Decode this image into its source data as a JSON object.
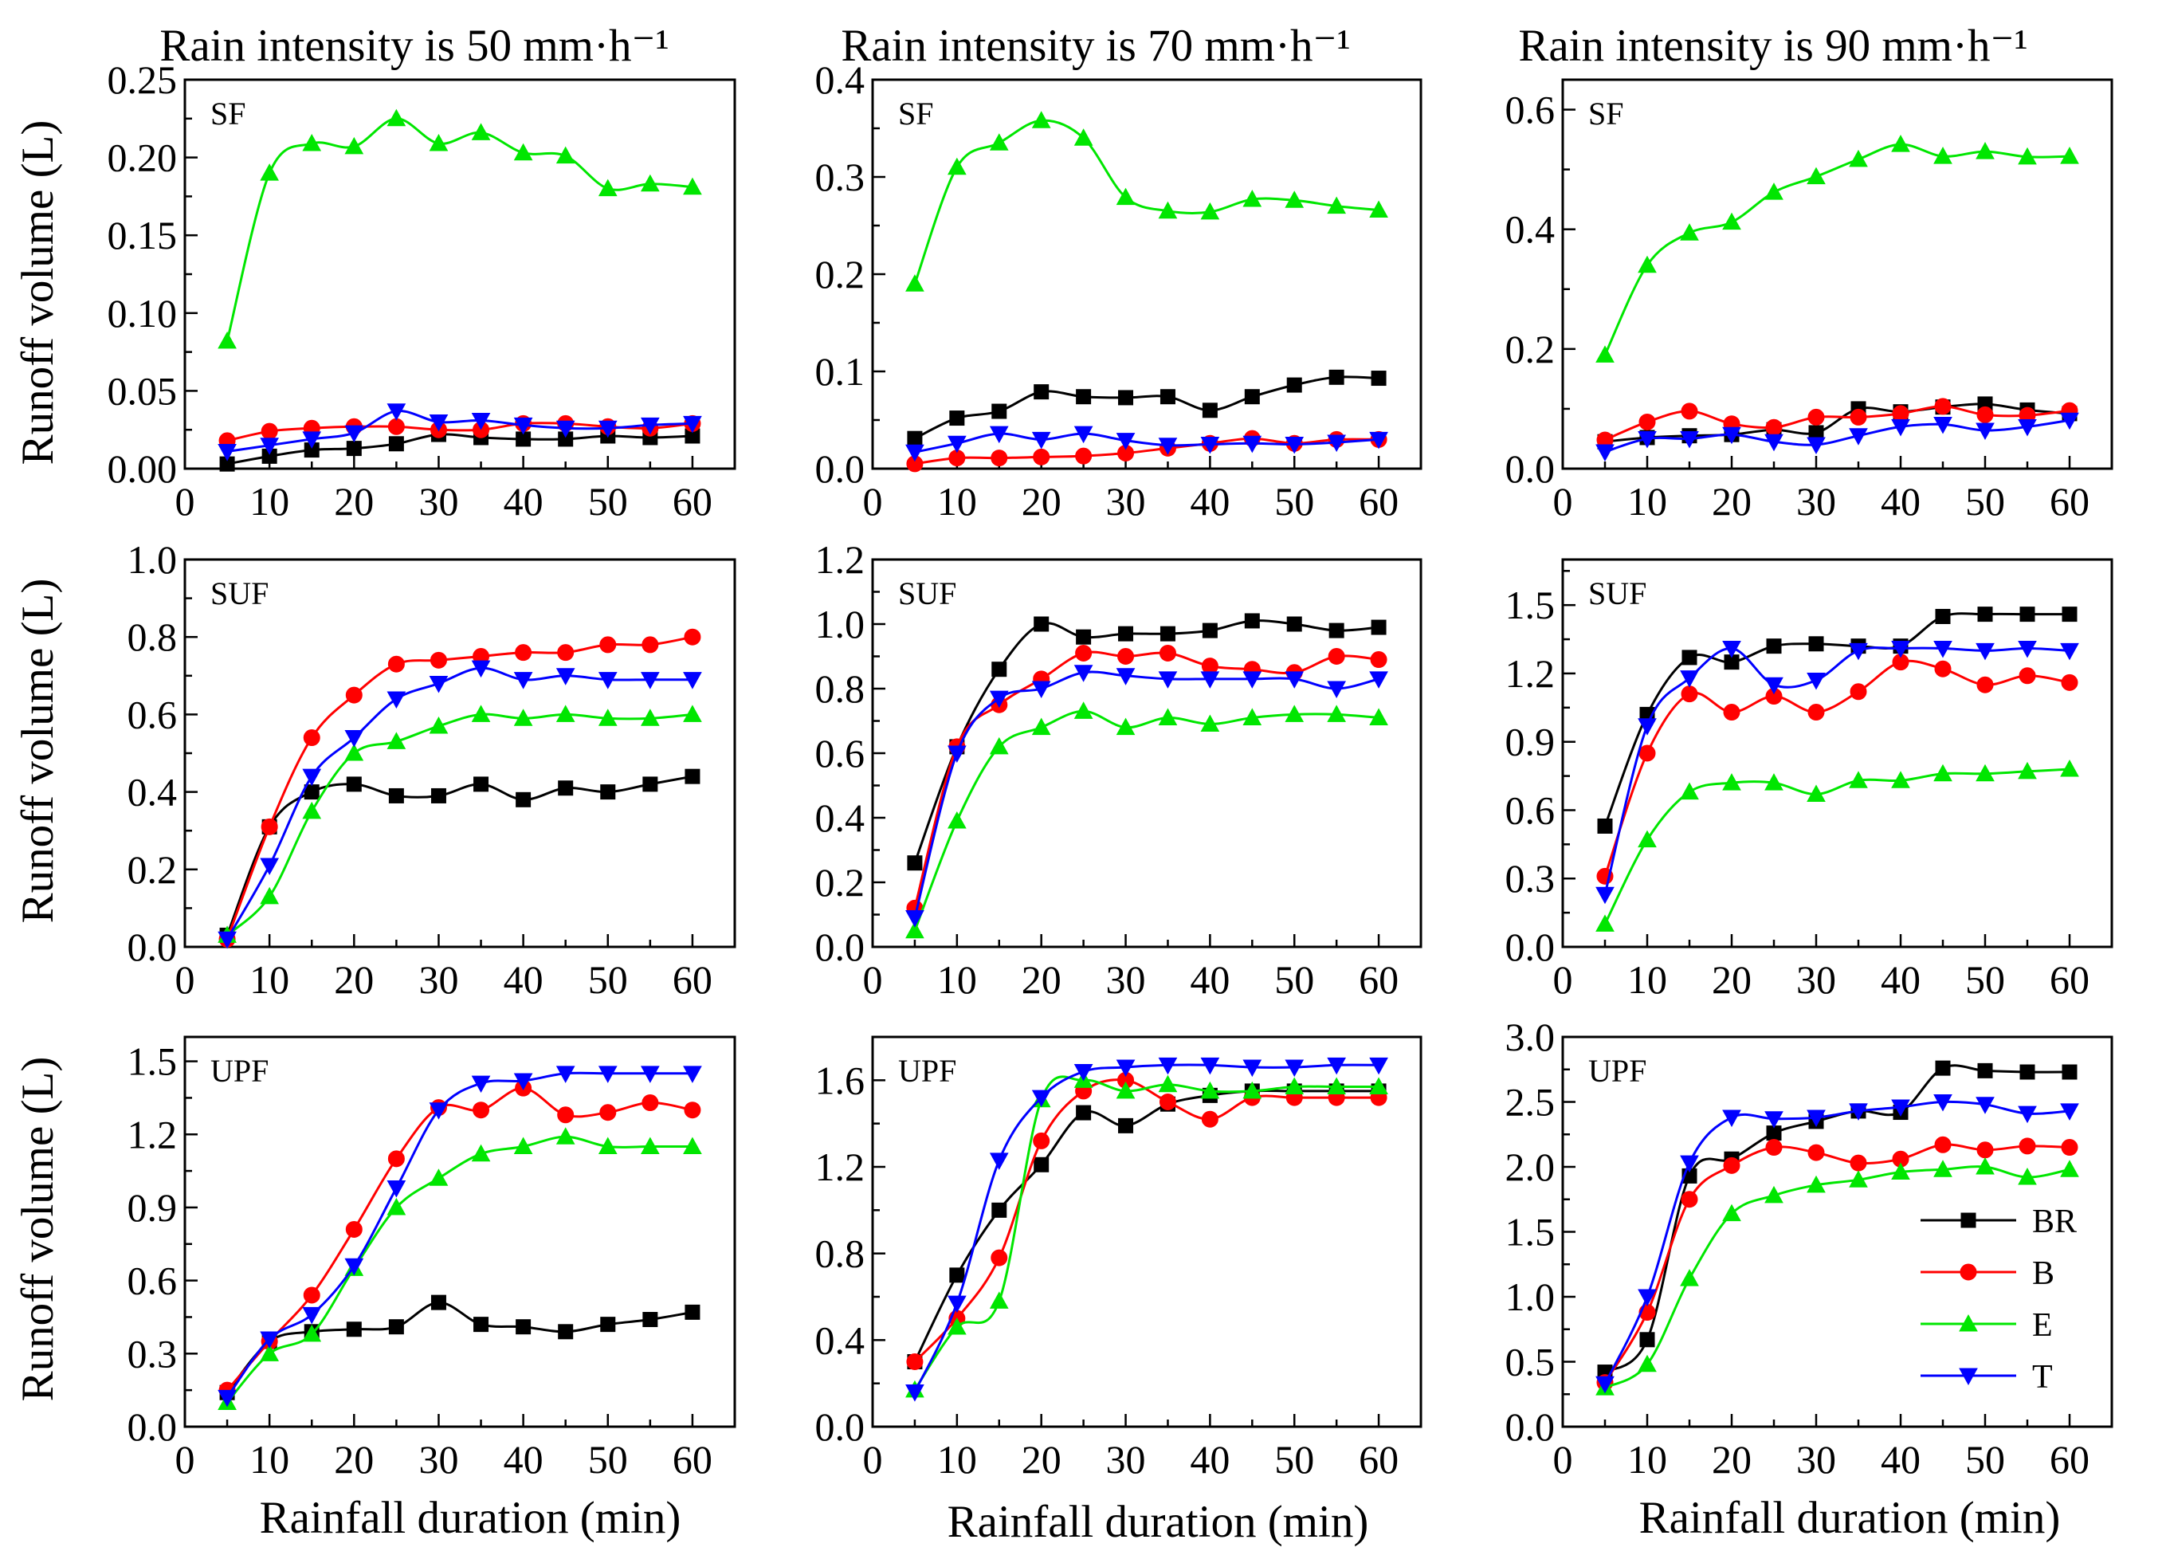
{
  "figure": {
    "column_titles": [
      "Rain intensity is 50 mm·h⁻¹",
      "Rain intensity is 70 mm·h⁻¹",
      "Rain intensity is 90 mm·h⁻¹"
    ],
    "row_labels": [
      "SF",
      "SUF",
      "UPF"
    ],
    "x_axis_label": "Rainfall duration (min)",
    "y_axis_label": "Runoff volume (L)"
  },
  "colors": {
    "BR": "#000000",
    "B": "#ff0000",
    "E": "#00e600",
    "T": "#0000ff"
  },
  "legend": [
    {
      "name": "BR",
      "marker": "square"
    },
    {
      "name": "B",
      "marker": "circle"
    },
    {
      "name": "E",
      "marker": "triangle-up"
    },
    {
      "name": "T",
      "marker": "triangle-down"
    }
  ],
  "chart_data": [
    {
      "type": "line",
      "row": "SF",
      "intensity": "Rain intensity is 50 mm·h⁻¹",
      "x": [
        5,
        10,
        15,
        20,
        25,
        30,
        35,
        40,
        45,
        50,
        55,
        60
      ],
      "xlim": [
        0,
        65
      ],
      "xticks": [
        0,
        10,
        20,
        30,
        40,
        50,
        60
      ],
      "ylim": [
        0,
        0.25
      ],
      "yticks": [
        "0.00",
        "0.05",
        "0.10",
        "0.15",
        "0.20",
        "0.25"
      ],
      "series": [
        {
          "name": "BR",
          "values": [
            0.003,
            0.008,
            0.012,
            0.013,
            0.016,
            0.022,
            0.02,
            0.019,
            0.019,
            0.021,
            0.02,
            0.021
          ]
        },
        {
          "name": "B",
          "values": [
            0.018,
            0.024,
            0.026,
            0.027,
            0.027,
            0.025,
            0.025,
            0.029,
            0.029,
            0.027,
            0.026,
            0.029
          ]
        },
        {
          "name": "E",
          "values": [
            0.082,
            0.19,
            0.209,
            0.207,
            0.225,
            0.209,
            0.216,
            0.203,
            0.201,
            0.18,
            0.183,
            0.181
          ]
        },
        {
          "name": "T",
          "values": [
            0.011,
            0.015,
            0.019,
            0.023,
            0.037,
            0.03,
            0.031,
            0.028,
            0.026,
            0.026,
            0.028,
            0.029
          ]
        }
      ]
    },
    {
      "type": "line",
      "row": "SF",
      "intensity": "Rain intensity is 70 mm·h⁻¹",
      "x": [
        5,
        10,
        15,
        20,
        25,
        30,
        35,
        40,
        45,
        50,
        55,
        60
      ],
      "xlim": [
        0,
        65
      ],
      "xticks": [
        0,
        10,
        20,
        30,
        40,
        50,
        60
      ],
      "ylim": [
        0,
        0.4
      ],
      "yticks": [
        "0.0",
        "0.1",
        "0.2",
        "0.3",
        "0.4"
      ],
      "series": [
        {
          "name": "BR",
          "values": [
            0.031,
            0.052,
            0.059,
            0.079,
            0.074,
            0.073,
            0.074,
            0.06,
            0.074,
            0.086,
            0.094,
            0.093
          ]
        },
        {
          "name": "B",
          "values": [
            0.005,
            0.011,
            0.011,
            0.012,
            0.013,
            0.016,
            0.021,
            0.026,
            0.031,
            0.026,
            0.03,
            0.03
          ]
        },
        {
          "name": "E",
          "values": [
            0.19,
            0.31,
            0.335,
            0.358,
            0.34,
            0.279,
            0.265,
            0.264,
            0.277,
            0.276,
            0.27,
            0.266
          ]
        },
        {
          "name": "T",
          "values": [
            0.017,
            0.026,
            0.036,
            0.03,
            0.036,
            0.029,
            0.024,
            0.025,
            0.026,
            0.025,
            0.027,
            0.03
          ]
        }
      ]
    },
    {
      "type": "line",
      "row": "SF",
      "intensity": "Rain intensity is 90 mm·h⁻¹",
      "x": [
        5,
        10,
        15,
        20,
        25,
        30,
        35,
        40,
        45,
        50,
        55,
        60
      ],
      "xlim": [
        0,
        65
      ],
      "xticks": [
        0,
        10,
        20,
        30,
        40,
        50,
        60
      ],
      "ylim": [
        0,
        0.65
      ],
      "yticks": [
        "0.0",
        "0.2",
        "0.4",
        "0.6"
      ],
      "series": [
        {
          "name": "BR",
          "values": [
            0.045,
            0.052,
            0.055,
            0.057,
            0.065,
            0.06,
            0.1,
            0.095,
            0.103,
            0.108,
            0.098,
            0.092
          ]
        },
        {
          "name": "B",
          "values": [
            0.048,
            0.078,
            0.096,
            0.075,
            0.069,
            0.086,
            0.086,
            0.092,
            0.104,
            0.09,
            0.089,
            0.097
          ]
        },
        {
          "name": "E",
          "values": [
            0.19,
            0.34,
            0.394,
            0.412,
            0.462,
            0.488,
            0.517,
            0.542,
            0.522,
            0.53,
            0.521,
            0.522
          ]
        },
        {
          "name": "T",
          "values": [
            0.028,
            0.05,
            0.05,
            0.057,
            0.045,
            0.04,
            0.055,
            0.07,
            0.074,
            0.064,
            0.07,
            0.081
          ]
        }
      ]
    },
    {
      "type": "line",
      "row": "SUF",
      "intensity": "Rain intensity is 50 mm·h⁻¹",
      "x": [
        5,
        10,
        15,
        20,
        25,
        30,
        35,
        40,
        45,
        50,
        55,
        60
      ],
      "xlim": [
        0,
        65
      ],
      "xticks": [
        0,
        10,
        20,
        30,
        40,
        50,
        60
      ],
      "ylim": [
        0,
        1.0
      ],
      "yticks": [
        "0.0",
        "0.2",
        "0.4",
        "0.6",
        "0.8",
        "1.0"
      ],
      "series": [
        {
          "name": "BR",
          "values": [
            0.03,
            0.31,
            0.4,
            0.42,
            0.39,
            0.39,
            0.42,
            0.38,
            0.41,
            0.4,
            0.42,
            0.44
          ]
        },
        {
          "name": "B",
          "values": [
            0.02,
            0.31,
            0.54,
            0.65,
            0.73,
            0.74,
            0.75,
            0.76,
            0.76,
            0.78,
            0.78,
            0.8
          ]
        },
        {
          "name": "E",
          "values": [
            0.03,
            0.13,
            0.35,
            0.5,
            0.53,
            0.57,
            0.6,
            0.59,
            0.6,
            0.59,
            0.59,
            0.6
          ]
        },
        {
          "name": "T",
          "values": [
            0.02,
            0.21,
            0.44,
            0.54,
            0.64,
            0.68,
            0.72,
            0.69,
            0.7,
            0.69,
            0.69,
            0.69
          ]
        }
      ]
    },
    {
      "type": "line",
      "row": "SUF",
      "intensity": "Rain intensity is 70 mm·h⁻¹",
      "x": [
        5,
        10,
        15,
        20,
        25,
        30,
        35,
        40,
        45,
        50,
        55,
        60
      ],
      "xlim": [
        0,
        65
      ],
      "xticks": [
        0,
        10,
        20,
        30,
        40,
        50,
        60
      ],
      "ylim": [
        0,
        1.2
      ],
      "yticks": [
        "0.0",
        "0.2",
        "0.4",
        "0.6",
        "0.8",
        "1.0",
        "1.2"
      ],
      "series": [
        {
          "name": "BR",
          "values": [
            0.26,
            0.62,
            0.86,
            1.0,
            0.96,
            0.97,
            0.97,
            0.98,
            1.01,
            1.0,
            0.98,
            0.99
          ]
        },
        {
          "name": "B",
          "values": [
            0.12,
            0.62,
            0.75,
            0.83,
            0.91,
            0.9,
            0.91,
            0.87,
            0.86,
            0.85,
            0.9,
            0.89
          ]
        },
        {
          "name": "E",
          "values": [
            0.05,
            0.39,
            0.62,
            0.68,
            0.73,
            0.68,
            0.71,
            0.69,
            0.71,
            0.72,
            0.72,
            0.71
          ]
        },
        {
          "name": "T",
          "values": [
            0.09,
            0.6,
            0.77,
            0.8,
            0.85,
            0.84,
            0.83,
            0.83,
            0.83,
            0.83,
            0.8,
            0.83
          ]
        }
      ]
    },
    {
      "type": "line",
      "row": "SUF",
      "intensity": "Rain intensity is 90 mm·h⁻¹",
      "x": [
        5,
        10,
        15,
        20,
        25,
        30,
        35,
        40,
        45,
        50,
        55,
        60
      ],
      "xlim": [
        0,
        65
      ],
      "xticks": [
        0,
        10,
        20,
        30,
        40,
        50,
        60
      ],
      "ylim": [
        0,
        1.7
      ],
      "yticks": [
        "0.0",
        "0.3",
        "0.6",
        "0.9",
        "1.2",
        "1.5"
      ],
      "series": [
        {
          "name": "BR",
          "values": [
            0.53,
            1.02,
            1.27,
            1.25,
            1.32,
            1.33,
            1.32,
            1.32,
            1.45,
            1.46,
            1.46,
            1.46
          ]
        },
        {
          "name": "B",
          "values": [
            0.31,
            0.85,
            1.11,
            1.03,
            1.1,
            1.03,
            1.12,
            1.25,
            1.22,
            1.15,
            1.19,
            1.16
          ]
        },
        {
          "name": "E",
          "values": [
            0.1,
            0.47,
            0.68,
            0.72,
            0.72,
            0.67,
            0.73,
            0.73,
            0.76,
            0.76,
            0.77,
            0.78
          ]
        },
        {
          "name": "T",
          "values": [
            0.23,
            0.97,
            1.18,
            1.31,
            1.15,
            1.17,
            1.3,
            1.31,
            1.31,
            1.3,
            1.31,
            1.3
          ]
        }
      ]
    },
    {
      "type": "line",
      "row": "UPF",
      "intensity": "Rain intensity is 50 mm·h⁻¹",
      "x": [
        5,
        10,
        15,
        20,
        25,
        30,
        35,
        40,
        45,
        50,
        55,
        60
      ],
      "xlim": [
        0,
        65
      ],
      "xticks": [
        0,
        10,
        20,
        30,
        40,
        50,
        60
      ],
      "ylim": [
        0,
        1.6
      ],
      "yticks": [
        "0.0",
        "0.3",
        "0.6",
        "0.9",
        "1.2",
        "1.5"
      ],
      "series": [
        {
          "name": "BR",
          "values": [
            0.14,
            0.35,
            0.39,
            0.4,
            0.41,
            0.51,
            0.42,
            0.41,
            0.39,
            0.42,
            0.44,
            0.47
          ]
        },
        {
          "name": "B",
          "values": [
            0.15,
            0.35,
            0.54,
            0.81,
            1.1,
            1.31,
            1.3,
            1.39,
            1.28,
            1.29,
            1.33,
            1.3
          ]
        },
        {
          "name": "E",
          "values": [
            0.1,
            0.3,
            0.38,
            0.65,
            0.9,
            1.02,
            1.12,
            1.15,
            1.19,
            1.15,
            1.15,
            1.15
          ]
        },
        {
          "name": "T",
          "values": [
            0.12,
            0.36,
            0.46,
            0.66,
            0.98,
            1.3,
            1.41,
            1.42,
            1.45,
            1.45,
            1.45,
            1.45
          ]
        }
      ]
    },
    {
      "type": "line",
      "row": "UPF",
      "intensity": "Rain intensity is 70 mm·h⁻¹",
      "x": [
        5,
        10,
        15,
        20,
        25,
        30,
        35,
        40,
        45,
        50,
        55,
        60
      ],
      "xlim": [
        0,
        65
      ],
      "xticks": [
        0,
        10,
        20,
        30,
        40,
        50,
        60
      ],
      "ylim": [
        0,
        1.8
      ],
      "yticks": [
        "0.0",
        "0.4",
        "0.8",
        "1.2",
        "1.6"
      ],
      "series": [
        {
          "name": "BR",
          "values": [
            0.3,
            0.7,
            1.0,
            1.21,
            1.45,
            1.39,
            1.49,
            1.53,
            1.55,
            1.55,
            1.55,
            1.55
          ]
        },
        {
          "name": "B",
          "values": [
            0.3,
            0.5,
            0.78,
            1.32,
            1.55,
            1.6,
            1.5,
            1.42,
            1.52,
            1.52,
            1.52,
            1.52
          ]
        },
        {
          "name": "E",
          "values": [
            0.17,
            0.46,
            0.58,
            1.51,
            1.6,
            1.55,
            1.58,
            1.55,
            1.55,
            1.57,
            1.57,
            1.57
          ]
        },
        {
          "name": "T",
          "values": [
            0.16,
            0.57,
            1.23,
            1.52,
            1.64,
            1.66,
            1.67,
            1.67,
            1.66,
            1.66,
            1.67,
            1.67
          ]
        }
      ]
    },
    {
      "type": "line",
      "row": "UPF",
      "intensity": "Rain intensity is 90 mm·h⁻¹",
      "x": [
        5,
        10,
        15,
        20,
        25,
        30,
        35,
        40,
        45,
        50,
        55,
        60
      ],
      "xlim": [
        0,
        65
      ],
      "xticks": [
        0,
        10,
        20,
        30,
        40,
        50,
        60
      ],
      "ylim": [
        0,
        3.0
      ],
      "yticks": [
        "0.0",
        "0.5",
        "1.0",
        "1.5",
        "2.0",
        "2.5",
        "3.0"
      ],
      "series": [
        {
          "name": "BR",
          "values": [
            0.42,
            0.67,
            1.93,
            2.06,
            2.26,
            2.35,
            2.43,
            2.42,
            2.76,
            2.74,
            2.73,
            2.73
          ]
        },
        {
          "name": "B",
          "values": [
            0.34,
            0.88,
            1.75,
            2.01,
            2.15,
            2.11,
            2.03,
            2.06,
            2.17,
            2.13,
            2.16,
            2.15
          ]
        },
        {
          "name": "E",
          "values": [
            0.3,
            0.48,
            1.14,
            1.64,
            1.78,
            1.86,
            1.9,
            1.96,
            1.98,
            2.0,
            1.92,
            1.98
          ]
        },
        {
          "name": "T",
          "values": [
            0.33,
            1.0,
            2.03,
            2.38,
            2.37,
            2.38,
            2.43,
            2.46,
            2.5,
            2.48,
            2.41,
            2.43
          ]
        }
      ]
    }
  ]
}
